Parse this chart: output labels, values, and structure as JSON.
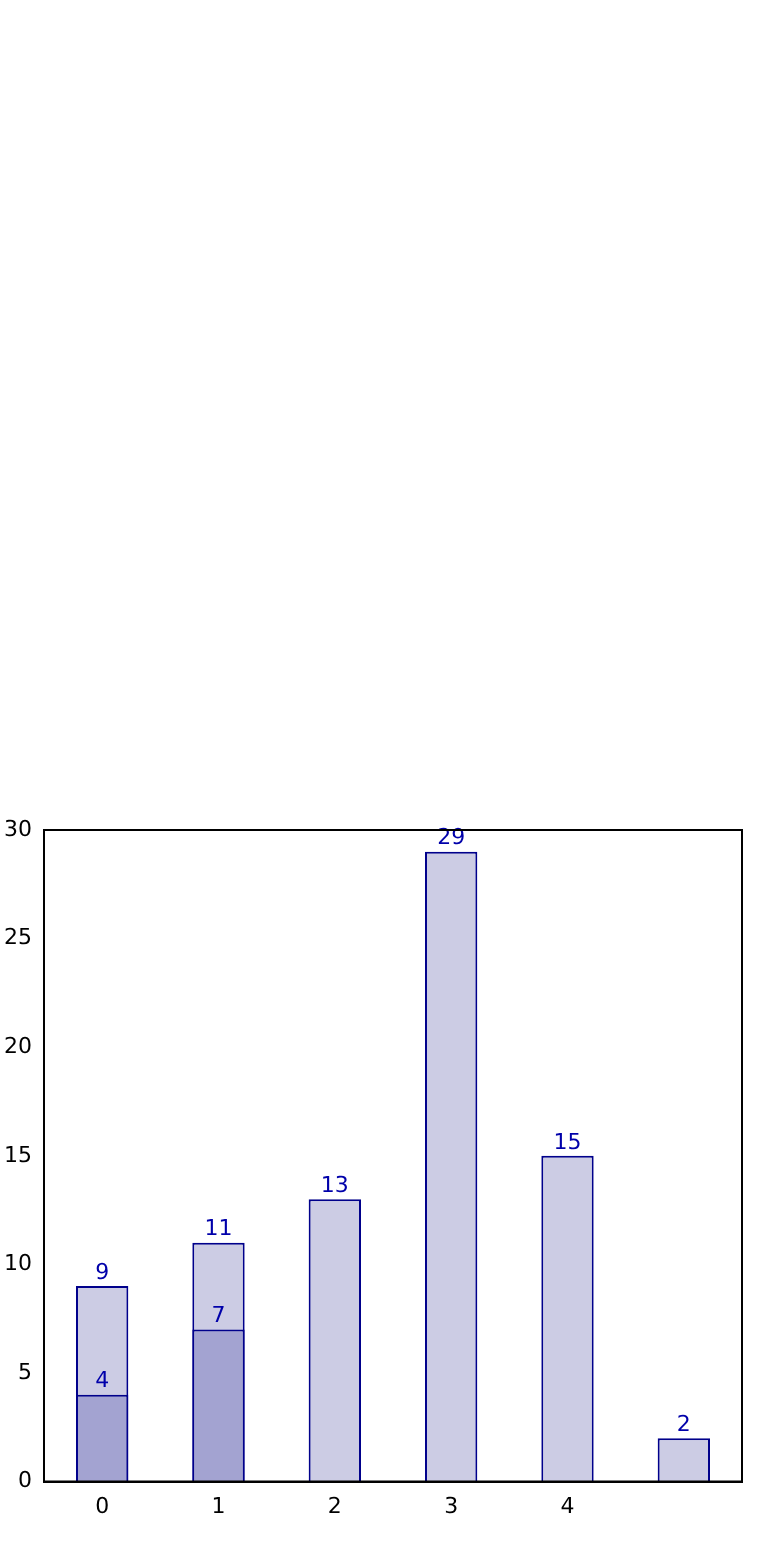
{
  "chart_data": {
    "type": "bar",
    "categories": [
      "0",
      "1",
      "2",
      "3",
      "4",
      null
    ],
    "series": [
      {
        "color": "#a3a3d1",
        "values": [
          4,
          7,
          null,
          null,
          null,
          null
        ]
      },
      {
        "color": "#ccccE4",
        "values": [
          9,
          11,
          13,
          29,
          15,
          2
        ]
      }
    ],
    "ylim": [
      0,
      30
    ],
    "yticks": [
      0,
      5,
      10,
      15,
      20,
      25,
      30
    ],
    "data_labels": true,
    "grid": false
  }
}
